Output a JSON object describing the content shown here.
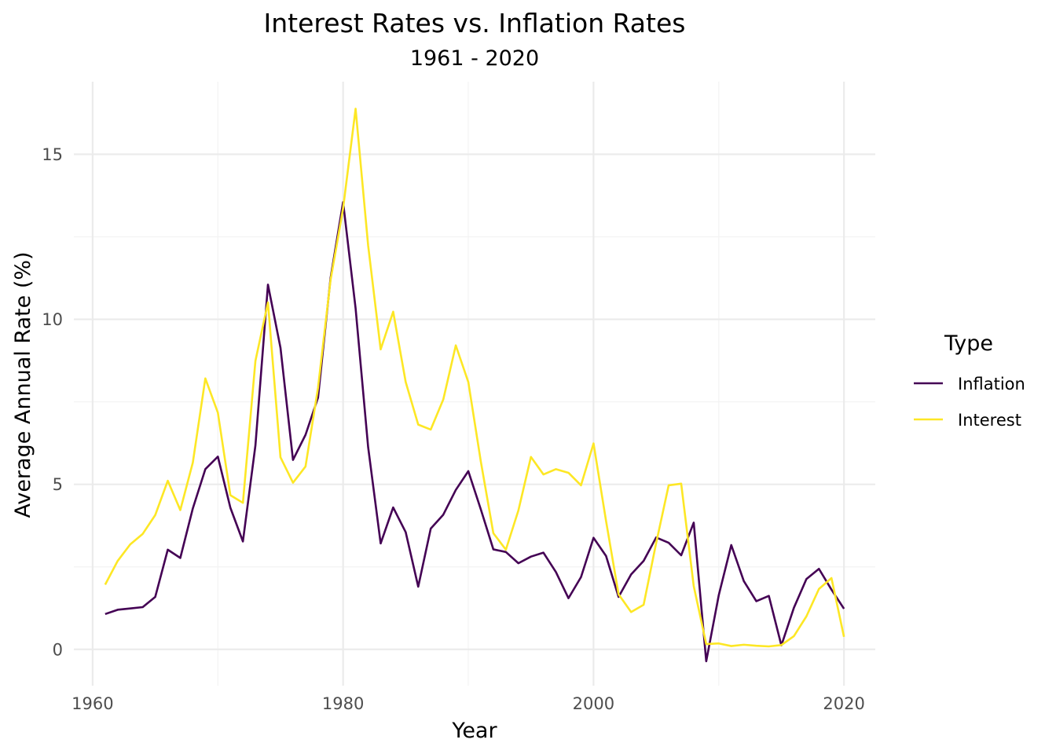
{
  "chart_data": {
    "type": "line",
    "title": "Interest Rates vs. Inflation Rates",
    "subtitle": "1961 - 2020",
    "xlabel": "Year",
    "ylabel": "Average Annual Rate (%)",
    "xlim": [
      1958.5,
      2022.5
    ],
    "ylim": [
      -1.1,
      17.2
    ],
    "x_major_ticks": [
      1960,
      1980,
      2000,
      2020
    ],
    "x_minor_ticks": [
      1970,
      1990,
      2010
    ],
    "y_major_ticks": [
      0,
      5,
      10,
      15
    ],
    "y_minor_ticks": [
      2.5,
      7.5,
      12.5
    ],
    "x_tick_labels": [
      "1960",
      "1980",
      "2000",
      "2020"
    ],
    "y_tick_labels": [
      "0",
      "5",
      "10",
      "15"
    ],
    "grid": true,
    "legend": {
      "title": "Type",
      "position": "right"
    },
    "x": [
      1961,
      1962,
      1963,
      1964,
      1965,
      1966,
      1967,
      1968,
      1969,
      1970,
      1971,
      1972,
      1973,
      1974,
      1975,
      1976,
      1977,
      1978,
      1979,
      1980,
      1981,
      1982,
      1983,
      1984,
      1985,
      1986,
      1987,
      1988,
      1989,
      1990,
      1991,
      1992,
      1993,
      1994,
      1995,
      1996,
      1997,
      1998,
      1999,
      2000,
      2001,
      2002,
      2003,
      2004,
      2005,
      2006,
      2007,
      2008,
      2009,
      2010,
      2011,
      2012,
      2013,
      2014,
      2015,
      2016,
      2017,
      2018,
      2019,
      2020
    ],
    "series": [
      {
        "name": "Inflation",
        "color": "#440154",
        "values": [
          1.07,
          1.2,
          1.24,
          1.28,
          1.59,
          3.02,
          2.77,
          4.27,
          5.46,
          5.84,
          4.29,
          3.27,
          6.18,
          11.05,
          9.14,
          5.74,
          6.5,
          7.63,
          11.25,
          13.55,
          10.33,
          6.13,
          3.21,
          4.3,
          3.55,
          1.9,
          3.66,
          4.08,
          4.83,
          5.4,
          4.24,
          3.03,
          2.95,
          2.61,
          2.81,
          2.93,
          2.34,
          1.55,
          2.19,
          3.38,
          2.83,
          1.59,
          2.27,
          2.68,
          3.39,
          3.23,
          2.85,
          3.84,
          -0.36,
          1.64,
          3.16,
          2.07,
          1.46,
          1.62,
          0.12,
          1.26,
          2.13,
          2.44,
          1.81,
          1.23
        ]
      },
      {
        "name": "Interest",
        "color": "#fde725",
        "values": [
          1.96,
          2.68,
          3.18,
          3.5,
          4.07,
          5.11,
          4.22,
          5.66,
          8.21,
          7.17,
          4.67,
          4.44,
          8.74,
          10.51,
          5.82,
          5.05,
          5.54,
          7.93,
          11.19,
          13.36,
          16.38,
          12.24,
          9.09,
          10.23,
          8.1,
          6.81,
          6.66,
          7.57,
          9.21,
          8.1,
          5.69,
          3.52,
          3.02,
          4.21,
          5.83,
          5.3,
          5.46,
          5.35,
          4.97,
          6.24,
          3.89,
          1.67,
          1.13,
          1.35,
          3.22,
          4.97,
          5.02,
          1.92,
          0.16,
          0.18,
          0.1,
          0.14,
          0.11,
          0.09,
          0.13,
          0.4,
          1.0,
          1.83,
          2.16,
          0.38
        ]
      }
    ]
  }
}
